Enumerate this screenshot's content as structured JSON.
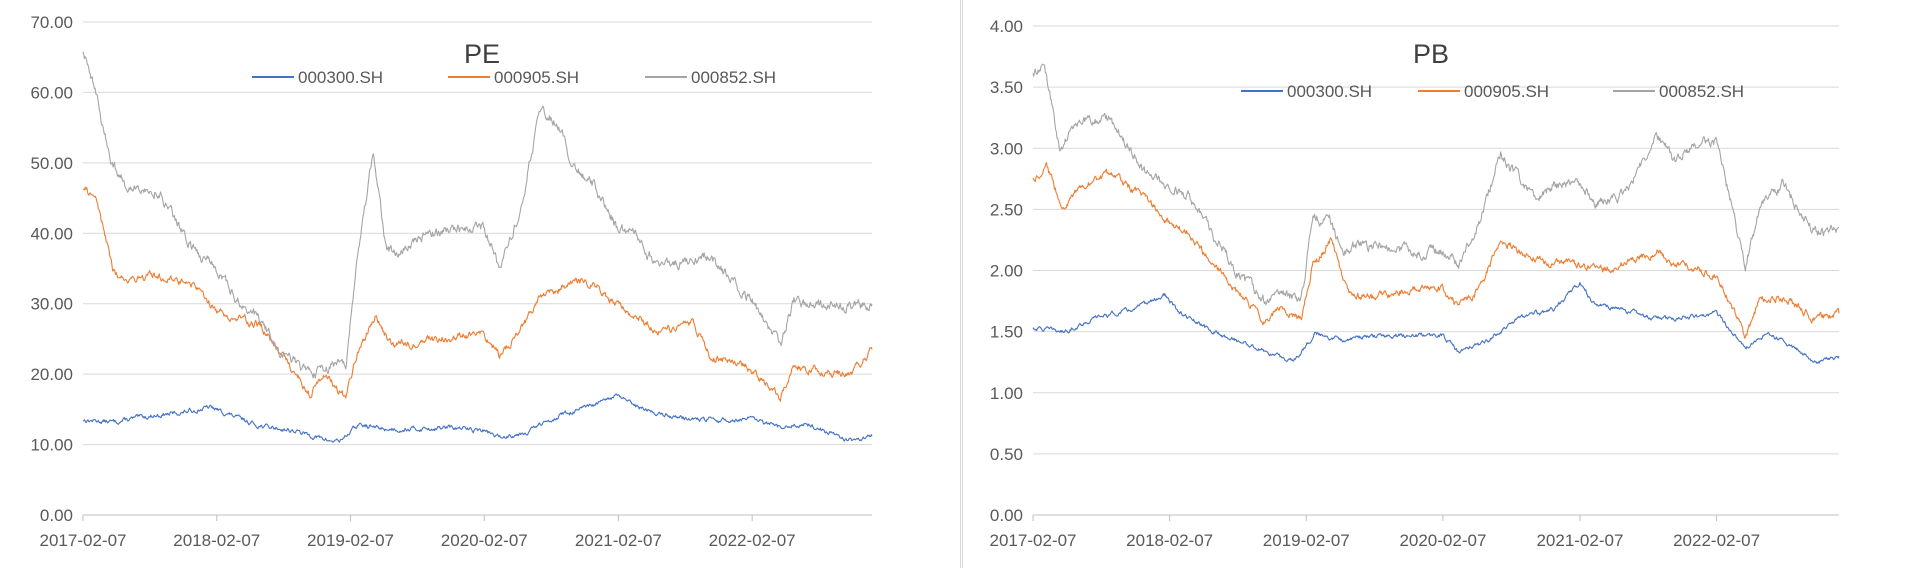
{
  "chart_data": [
    {
      "type": "line",
      "title": "PE",
      "xlabel": "",
      "ylabel": "",
      "ylim": [
        0,
        70
      ],
      "yticks": [
        "0.00",
        "10.00",
        "20.00",
        "30.00",
        "40.00",
        "50.00",
        "60.00",
        "70.00"
      ],
      "xticks": [
        "2017-02-07",
        "2018-02-07",
        "2019-02-07",
        "2020-02-07",
        "2021-02-07",
        "2022-02-07"
      ],
      "x_range": [
        "2017-02-07",
        "2022-12-31"
      ],
      "grid": "horizontal",
      "legend_position": "top",
      "series": [
        {
          "name": "000300.SH",
          "color": "#4472c4",
          "x": [
            "2017-02-07",
            "2017-05-01",
            "2017-08-01",
            "2017-11-01",
            "2018-01-20",
            "2018-03-01",
            "2018-06-01",
            "2018-09-01",
            "2018-12-15",
            "2019-01-10",
            "2019-03-01",
            "2019-05-15",
            "2019-08-01",
            "2019-11-01",
            "2020-02-07",
            "2020-03-20",
            "2020-06-01",
            "2020-09-01",
            "2020-12-01",
            "2021-02-07",
            "2021-03-20",
            "2021-06-01",
            "2021-09-01",
            "2021-12-01",
            "2022-02-07",
            "2022-04-25",
            "2022-07-01",
            "2022-10-31",
            "2022-12-31"
          ],
          "values": [
            13.5,
            13.2,
            14.0,
            14.5,
            15.3,
            14.5,
            12.7,
            12.0,
            10.5,
            10.6,
            12.8,
            12.2,
            12.2,
            12.4,
            12.0,
            11.0,
            11.8,
            14.2,
            15.5,
            17.0,
            15.5,
            14.3,
            13.6,
            13.4,
            13.6,
            12.3,
            13.0,
            10.6,
            11.2
          ]
        },
        {
          "name": "000905.SH",
          "color": "#ed7d31",
          "x": [
            "2017-02-07",
            "2017-03-15",
            "2017-05-01",
            "2017-06-01",
            "2017-09-01",
            "2017-12-01",
            "2018-02-07",
            "2018-04-01",
            "2018-06-01",
            "2018-08-01",
            "2018-10-20",
            "2018-12-01",
            "2019-01-25",
            "2019-02-25",
            "2019-04-15",
            "2019-06-01",
            "2019-08-01",
            "2019-10-01",
            "2019-12-01",
            "2020-02-07",
            "2020-03-20",
            "2020-05-15",
            "2020-07-10",
            "2020-09-01",
            "2020-10-01",
            "2020-12-01",
            "2021-02-07",
            "2021-04-01",
            "2021-06-01",
            "2021-09-01",
            "2021-10-15",
            "2021-12-31",
            "2022-02-07",
            "2022-04-25",
            "2022-06-01",
            "2022-08-01",
            "2022-10-31",
            "2022-12-31"
          ],
          "values": [
            46.5,
            45.0,
            34.5,
            33.5,
            34.0,
            33.0,
            29.0,
            28.0,
            27.0,
            23.0,
            17.0,
            20.0,
            16.5,
            23.0,
            28.0,
            24.0,
            24.5,
            25.0,
            25.5,
            26.0,
            22.5,
            26.0,
            31.0,
            32.0,
            33.5,
            33.0,
            29.5,
            28.0,
            26.0,
            27.0,
            22.5,
            21.5,
            20.5,
            16.5,
            21.0,
            20.5,
            20.0,
            23.5
          ]
        },
        {
          "name": "000852.SH",
          "color": "#a5a5a5",
          "x": [
            "2017-02-07",
            "2017-03-10",
            "2017-04-20",
            "2017-06-01",
            "2017-09-01",
            "2017-12-01",
            "2018-02-07",
            "2018-04-01",
            "2018-06-01",
            "2018-08-01",
            "2018-10-20",
            "2018-12-15",
            "2019-01-25",
            "2019-02-25",
            "2019-04-10",
            "2019-05-15",
            "2019-06-15",
            "2019-09-01",
            "2019-12-01",
            "2020-02-07",
            "2020-03-20",
            "2020-05-15",
            "2020-07-10",
            "2020-09-01",
            "2020-10-01",
            "2020-12-01",
            "2021-02-07",
            "2021-03-20",
            "2021-06-01",
            "2021-09-01",
            "2021-10-15",
            "2021-12-31",
            "2022-02-07",
            "2022-04-25",
            "2022-06-01",
            "2022-08-01",
            "2022-10-31",
            "2022-12-31"
          ],
          "values": [
            66.0,
            61.0,
            51.0,
            47.0,
            46.0,
            38.0,
            35.0,
            31.0,
            28.0,
            23.0,
            20.0,
            21.0,
            21.5,
            36.0,
            52.0,
            38.0,
            37.0,
            40.0,
            40.5,
            41.0,
            35.0,
            43.0,
            58.0,
            55.0,
            50.0,
            47.0,
            40.5,
            40.0,
            35.0,
            36.5,
            37.0,
            32.0,
            30.5,
            24.0,
            30.5,
            29.5,
            29.5,
            30.0
          ]
        }
      ]
    },
    {
      "type": "line",
      "title": "PB",
      "xlabel": "",
      "ylabel": "",
      "ylim": [
        0,
        4
      ],
      "yticks": [
        "0.00",
        "0.50",
        "1.00",
        "1.50",
        "2.00",
        "2.50",
        "3.00",
        "3.50",
        "4.00"
      ],
      "xticks": [
        "2017-02-07",
        "2018-02-07",
        "2019-02-07",
        "2020-02-07",
        "2021-02-07",
        "2022-02-07"
      ],
      "x_range": [
        "2017-02-07",
        "2022-12-31"
      ],
      "grid": "horizontal",
      "legend_position": "top",
      "series": [
        {
          "name": "000300.SH",
          "color": "#4472c4",
          "x": [
            "2017-02-07",
            "2017-05-01",
            "2017-08-01",
            "2017-11-01",
            "2018-01-25",
            "2018-03-01",
            "2018-06-01",
            "2018-09-01",
            "2018-12-15",
            "2019-01-10",
            "2019-03-01",
            "2019-05-15",
            "2019-08-01",
            "2019-11-01",
            "2020-02-07",
            "2020-03-20",
            "2020-06-01",
            "2020-09-01",
            "2020-12-01",
            "2021-02-07",
            "2021-03-20",
            "2021-06-01",
            "2021-09-01",
            "2021-12-01",
            "2022-02-07",
            "2022-04-25",
            "2022-07-01",
            "2022-10-31",
            "2022-12-31"
          ],
          "values": [
            1.53,
            1.5,
            1.62,
            1.68,
            1.8,
            1.66,
            1.5,
            1.4,
            1.27,
            1.28,
            1.48,
            1.44,
            1.46,
            1.47,
            1.47,
            1.33,
            1.42,
            1.62,
            1.68,
            1.9,
            1.72,
            1.68,
            1.6,
            1.62,
            1.65,
            1.38,
            1.48,
            1.25,
            1.3
          ]
        },
        {
          "name": "000905.SH",
          "color": "#ed7d31",
          "x": [
            "2017-02-07",
            "2017-03-15",
            "2017-05-01",
            "2017-06-01",
            "2017-09-01",
            "2017-12-01",
            "2018-02-07",
            "2018-04-01",
            "2018-06-01",
            "2018-08-01",
            "2018-10-20",
            "2018-12-01",
            "2019-01-25",
            "2019-02-25",
            "2019-04-15",
            "2019-06-01",
            "2019-08-01",
            "2019-10-01",
            "2019-12-01",
            "2020-02-07",
            "2020-03-20",
            "2020-05-15",
            "2020-07-10",
            "2020-09-01",
            "2020-10-01",
            "2020-12-01",
            "2021-02-07",
            "2021-04-01",
            "2021-06-01",
            "2021-09-01",
            "2021-10-15",
            "2021-12-31",
            "2022-02-07",
            "2022-04-25",
            "2022-06-01",
            "2022-08-01",
            "2022-10-31",
            "2022-12-31"
          ],
          "values": [
            2.75,
            2.85,
            2.5,
            2.65,
            2.8,
            2.6,
            2.4,
            2.3,
            2.05,
            1.85,
            1.58,
            1.7,
            1.6,
            2.05,
            2.25,
            1.8,
            1.78,
            1.82,
            1.85,
            1.85,
            1.7,
            1.85,
            2.25,
            2.15,
            2.1,
            2.05,
            2.05,
            2.0,
            2.05,
            2.15,
            2.05,
            2.0,
            1.95,
            1.45,
            1.75,
            1.78,
            1.6,
            1.65
          ]
        },
        {
          "name": "000852.SH",
          "color": "#a5a5a5",
          "x": [
            "2017-02-07",
            "2017-03-10",
            "2017-04-20",
            "2017-06-01",
            "2017-09-01",
            "2017-12-01",
            "2018-02-07",
            "2018-04-01",
            "2018-06-01",
            "2018-08-01",
            "2018-10-20",
            "2018-12-15",
            "2019-01-25",
            "2019-02-25",
            "2019-04-10",
            "2019-05-15",
            "2019-06-15",
            "2019-09-01",
            "2019-12-01",
            "2020-02-07",
            "2020-03-20",
            "2020-05-15",
            "2020-07-10",
            "2020-09-01",
            "2020-10-01",
            "2020-12-01",
            "2021-02-07",
            "2021-03-20",
            "2021-06-01",
            "2021-09-01",
            "2021-10-15",
            "2021-12-31",
            "2022-02-07",
            "2022-04-25",
            "2022-06-01",
            "2022-08-01",
            "2022-10-31",
            "2022-12-31"
          ],
          "values": [
            3.6,
            3.68,
            3.0,
            3.2,
            3.25,
            2.8,
            2.7,
            2.6,
            2.3,
            2.0,
            1.75,
            1.8,
            1.75,
            2.45,
            2.4,
            2.15,
            2.2,
            2.2,
            2.15,
            2.15,
            2.05,
            2.4,
            2.95,
            2.75,
            2.6,
            2.7,
            2.7,
            2.55,
            2.6,
            3.1,
            2.9,
            3.05,
            3.05,
            2.05,
            2.5,
            2.7,
            2.3,
            2.35
          ]
        }
      ]
    }
  ]
}
